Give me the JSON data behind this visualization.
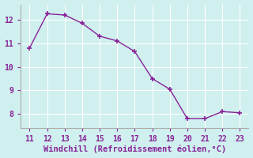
{
  "x": [
    11,
    12,
    13,
    14,
    15,
    16,
    17,
    18,
    19,
    20,
    21,
    22,
    23
  ],
  "y": [
    10.8,
    12.25,
    12.2,
    11.85,
    11.3,
    11.1,
    10.65,
    9.5,
    9.05,
    7.8,
    7.8,
    8.1,
    8.05
  ],
  "line_color": "#882299",
  "marker": "+",
  "marker_size": 4,
  "marker_linewidth": 1.2,
  "line_width": 1.0,
  "xlabel": "Windchill (Refroidissement éolien,°C)",
  "xlim": [
    10.5,
    23.5
  ],
  "ylim": [
    7.4,
    12.65
  ],
  "xticks": [
    11,
    12,
    13,
    14,
    15,
    16,
    17,
    18,
    19,
    20,
    21,
    22,
    23
  ],
  "yticks": [
    8,
    9,
    10,
    11,
    12
  ],
  "background_color": "#cff0ee",
  "grid_color": "#ffffff",
  "spine_color": "#aaaaaa",
  "xlabel_color": "#882299",
  "tick_color": "#882299",
  "xlabel_fontsize": 7.5,
  "tick_fontsize": 7
}
